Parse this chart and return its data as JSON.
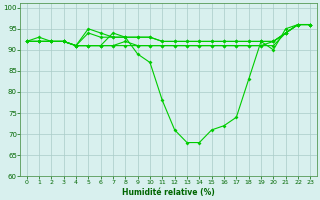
{
  "xlabel": "Humidité relative (%)",
  "xlim": [
    -0.5,
    23.5
  ],
  "ylim": [
    60,
    101
  ],
  "yticks": [
    60,
    65,
    70,
    75,
    80,
    85,
    90,
    95,
    100
  ],
  "xticks": [
    0,
    1,
    2,
    3,
    4,
    5,
    6,
    7,
    8,
    9,
    10,
    11,
    12,
    13,
    14,
    15,
    16,
    17,
    18,
    19,
    20,
    21,
    22,
    23
  ],
  "line_color": "#00cc00",
  "bg_color": "#d8f0ee",
  "grid_color": "#aaccc8",
  "series": [
    [
      92,
      93,
      92,
      92,
      91,
      94,
      93,
      93,
      93,
      89,
      87,
      78,
      71,
      68,
      68,
      71,
      72,
      74,
      83,
      92,
      90,
      95,
      96,
      96
    ],
    [
      92,
      92,
      92,
      92,
      91,
      91,
      91,
      91,
      92,
      91,
      91,
      91,
      91,
      91,
      91,
      91,
      91,
      91,
      91,
      91,
      92,
      94,
      96,
      96
    ],
    [
      92,
      92,
      92,
      92,
      91,
      91,
      91,
      91,
      91,
      91,
      91,
      91,
      91,
      91,
      91,
      91,
      91,
      91,
      91,
      91,
      91,
      94,
      96,
      96
    ],
    [
      92,
      92,
      92,
      92,
      91,
      95,
      94,
      93,
      93,
      93,
      93,
      92,
      92,
      92,
      92,
      92,
      92,
      92,
      92,
      92,
      92,
      94,
      96,
      96
    ],
    [
      92,
      92,
      92,
      92,
      91,
      91,
      91,
      94,
      93,
      93,
      93,
      92,
      92,
      92,
      92,
      92,
      92,
      92,
      92,
      92,
      92,
      94,
      96,
      96
    ]
  ]
}
